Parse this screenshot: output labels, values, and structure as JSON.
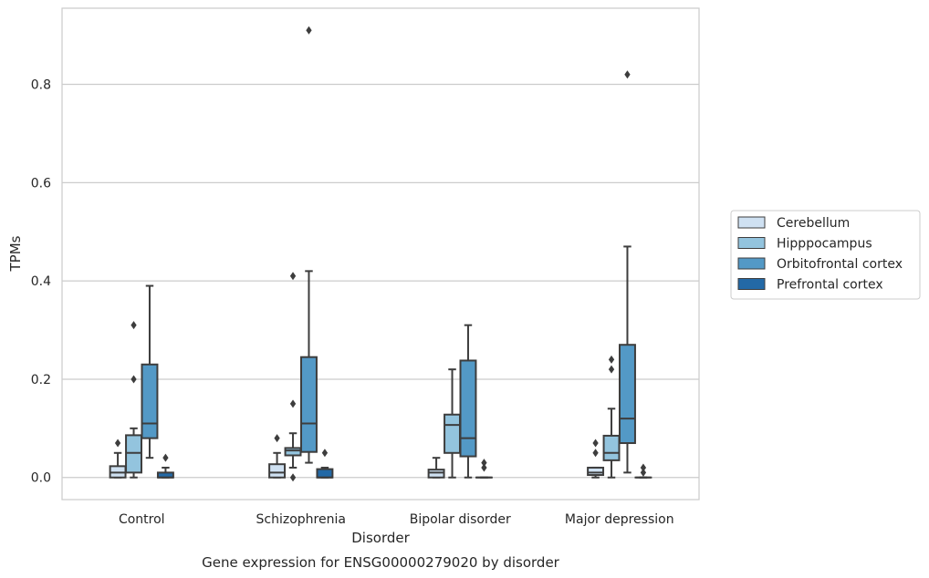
{
  "chart_data": {
    "type": "box",
    "title": "",
    "caption": "Gene expression for ENSG00000279020 by disorder",
    "xlabel": "Disorder",
    "ylabel": "TPMs",
    "ylim": [
      -0.045,
      0.955
    ],
    "yticks": [
      0.0,
      0.2,
      0.4,
      0.6,
      0.8
    ],
    "ytick_labels": [
      "0.0",
      "0.2",
      "0.4",
      "0.6",
      "0.8"
    ],
    "grid": "horizontal",
    "legend_position": "right",
    "categories": [
      "Control",
      "Schizophrenia",
      "Bipolar disorder",
      "Major depression"
    ],
    "series": [
      {
        "name": "Cerebellum",
        "color": "#cfe1f2",
        "boxes": [
          {
            "whislo": 0.0,
            "q1": 0.0,
            "med": 0.01,
            "q3": 0.023,
            "whishi": 0.05,
            "fliers": [
              0.07
            ]
          },
          {
            "whislo": 0.0,
            "q1": 0.0,
            "med": 0.01,
            "q3": 0.027,
            "whishi": 0.05,
            "fliers": [
              0.08
            ]
          },
          {
            "whislo": 0.0,
            "q1": 0.0,
            "med": 0.01,
            "q3": 0.016,
            "whishi": 0.04,
            "fliers": []
          },
          {
            "whislo": 0.0,
            "q1": 0.005,
            "med": 0.01,
            "q3": 0.02,
            "whishi": 0.02,
            "fliers": [
              0.05,
              0.07
            ]
          }
        ]
      },
      {
        "name": "Hipppocampus",
        "color": "#93c4de",
        "boxes": [
          {
            "whislo": 0.0,
            "q1": 0.01,
            "med": 0.05,
            "q3": 0.086,
            "whishi": 0.1,
            "fliers": [
              0.2,
              0.31
            ]
          },
          {
            "whislo": 0.02,
            "q1": 0.045,
            "med": 0.055,
            "q3": 0.06,
            "whishi": 0.09,
            "fliers": [
              0.0,
              0.15,
              0.41
            ]
          },
          {
            "whislo": 0.0,
            "q1": 0.05,
            "med": 0.107,
            "q3": 0.128,
            "whishi": 0.22,
            "fliers": []
          },
          {
            "whislo": 0.0,
            "q1": 0.035,
            "med": 0.05,
            "q3": 0.085,
            "whishi": 0.14,
            "fliers": [
              0.22,
              0.24
            ]
          }
        ]
      },
      {
        "name": "Orbitofrontal cortex",
        "color": "#5399c6",
        "boxes": [
          {
            "whislo": 0.04,
            "q1": 0.08,
            "med": 0.11,
            "q3": 0.23,
            "whishi": 0.39,
            "fliers": []
          },
          {
            "whislo": 0.03,
            "q1": 0.052,
            "med": 0.11,
            "q3": 0.245,
            "whishi": 0.42,
            "fliers": [
              0.91
            ]
          },
          {
            "whislo": 0.0,
            "q1": 0.043,
            "med": 0.08,
            "q3": 0.238,
            "whishi": 0.31,
            "fliers": []
          },
          {
            "whislo": 0.01,
            "q1": 0.07,
            "med": 0.12,
            "q3": 0.27,
            "whishi": 0.47,
            "fliers": [
              0.82
            ]
          }
        ]
      },
      {
        "name": "Prefrontal cortex",
        "color": "#2369a6",
        "boxes": [
          {
            "whislo": 0.0,
            "q1": 0.0,
            "med": 0.0,
            "q3": 0.01,
            "whishi": 0.02,
            "fliers": [
              0.04
            ]
          },
          {
            "whislo": 0.0,
            "q1": 0.0,
            "med": 0.0,
            "q3": 0.017,
            "whishi": 0.02,
            "fliers": [
              0.05
            ]
          },
          {
            "whislo": 0.0,
            "q1": 0.0,
            "med": 0.0,
            "q3": 0.0,
            "whishi": 0.0,
            "fliers": [
              0.02,
              0.03
            ]
          },
          {
            "whislo": 0.0,
            "q1": 0.0,
            "med": 0.0,
            "q3": 0.0,
            "whishi": 0.0,
            "fliers": [
              0.01,
              0.02
            ]
          }
        ]
      }
    ]
  }
}
